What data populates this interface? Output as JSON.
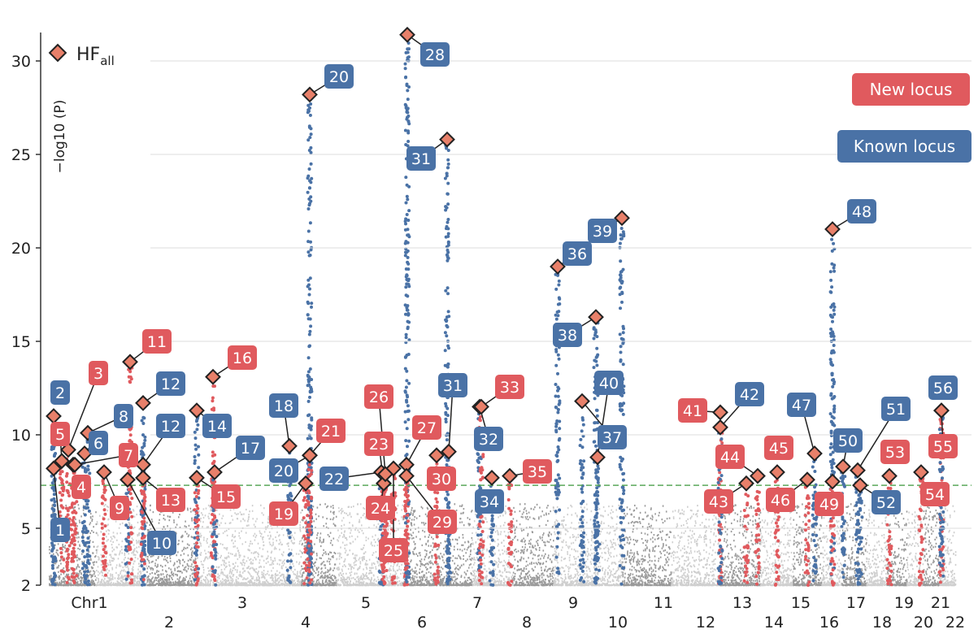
{
  "chart_data": {
    "type": "scatter",
    "title": "",
    "ylabel": "−log10 (P)",
    "ylim": [
      2,
      32
    ],
    "yticks": [
      2,
      5,
      10,
      15,
      20,
      25,
      30
    ],
    "significance_threshold": 7.3,
    "legend": {
      "marker": "diamond",
      "label": "HF",
      "label_sub": "all",
      "position": "top-left"
    },
    "chromosome_labels": [
      "Chr1",
      "2",
      "3",
      "4",
      "5",
      "6",
      "7",
      "8",
      "9",
      "10",
      "11",
      "12",
      "13",
      "14",
      "15",
      "16",
      "17",
      "18",
      "19",
      "20",
      "21",
      "22"
    ],
    "status_legend": [
      {
        "label": "New locus",
        "color": "#e05a5e"
      },
      {
        "label": "Known locus",
        "color": "#4a72a6"
      }
    ],
    "colors": {
      "new": "#e05a5e",
      "known": "#4a72a6",
      "bg_dark": "#9a9a9a",
      "bg_light": "#cfcfcf",
      "threshold": "#5aa85a",
      "diamond": "#e8806a"
    },
    "loci": [
      {
        "id": "1",
        "status": "known",
        "chr": 1,
        "y": 8.2
      },
      {
        "id": "2",
        "status": "known",
        "chr": 1,
        "y": 11.0
      },
      {
        "id": "3",
        "status": "new",
        "chr": 1,
        "y": 9.2
      },
      {
        "id": "4",
        "status": "new",
        "chr": 1,
        "y": 8.4
      },
      {
        "id": "5",
        "status": "new",
        "chr": 1,
        "y": 8.6
      },
      {
        "id": "6",
        "status": "known",
        "chr": 1,
        "y": 9.0
      },
      {
        "id": "7",
        "status": "new",
        "chr": 1,
        "y": 8.4
      },
      {
        "id": "8",
        "status": "known",
        "chr": 1,
        "y": 10.1
      },
      {
        "id": "9",
        "status": "new",
        "chr": 1,
        "y": 8.0
      },
      {
        "id": "10",
        "status": "known",
        "chr": 1,
        "y": 7.6
      },
      {
        "id": "11",
        "status": "new",
        "chr": 1,
        "y": 13.9
      },
      {
        "id": "12",
        "status": "known",
        "chr": 2,
        "y": 11.7
      },
      {
        "id": "12",
        "status": "known",
        "chr": 2,
        "y": 8.4
      },
      {
        "id": "13",
        "status": "new",
        "chr": 2,
        "y": 7.7
      },
      {
        "id": "14",
        "status": "known",
        "chr": 3,
        "y": 11.3
      },
      {
        "id": "15",
        "status": "new",
        "chr": 3,
        "y": 7.7
      },
      {
        "id": "16",
        "status": "new",
        "chr": 3,
        "y": 13.1
      },
      {
        "id": "17",
        "status": "known",
        "chr": 3,
        "y": 8.0
      },
      {
        "id": "18",
        "status": "known",
        "chr": 3,
        "y": 9.4
      },
      {
        "id": "19",
        "status": "new",
        "chr": 4,
        "y": 7.4
      },
      {
        "id": "20",
        "status": "known",
        "chr": 4,
        "y": 28.2
      },
      {
        "id": "20",
        "status": "known",
        "chr": 4,
        "y": 8.9
      },
      {
        "id": "21",
        "status": "new",
        "chr": 4,
        "y": 8.9
      },
      {
        "id": "22",
        "status": "known",
        "chr": 5,
        "y": 8.0
      },
      {
        "id": "23",
        "status": "new",
        "chr": 5,
        "y": 7.4
      },
      {
        "id": "24",
        "status": "new",
        "chr": 5,
        "y": 7.4
      },
      {
        "id": "25",
        "status": "new",
        "chr": 5,
        "y": 8.2
      },
      {
        "id": "26",
        "status": "new",
        "chr": 5,
        "y": 7.9
      },
      {
        "id": "27",
        "status": "new",
        "chr": 6,
        "y": 8.4
      },
      {
        "id": "28",
        "status": "known",
        "chr": 6,
        "y": 31.4
      },
      {
        "id": "29",
        "status": "new",
        "chr": 6,
        "y": 7.8
      },
      {
        "id": "30",
        "status": "new",
        "chr": 6,
        "y": 8.9
      },
      {
        "id": "31",
        "status": "known",
        "chr": 6,
        "y": 25.8
      },
      {
        "id": "31",
        "status": "known",
        "chr": 6,
        "y": 9.1
      },
      {
        "id": "32",
        "status": "known",
        "chr": 7,
        "y": 11.5
      },
      {
        "id": "33",
        "status": "new",
        "chr": 7,
        "y": 11.5
      },
      {
        "id": "34",
        "status": "known",
        "chr": 7,
        "y": 7.7
      },
      {
        "id": "35",
        "status": "new",
        "chr": 8,
        "y": 7.8
      },
      {
        "id": "36",
        "status": "known",
        "chr": 9,
        "y": 19.0
      },
      {
        "id": "37",
        "status": "known",
        "chr": 10,
        "y": 11.8
      },
      {
        "id": "38",
        "status": "known",
        "chr": 9,
        "y": 16.3
      },
      {
        "id": "39",
        "status": "known",
        "chr": 10,
        "y": 21.6
      },
      {
        "id": "40",
        "status": "known",
        "chr": 9,
        "y": 8.8
      },
      {
        "id": "41",
        "status": "new",
        "chr": 12,
        "y": 11.2
      },
      {
        "id": "42",
        "status": "known",
        "chr": 12,
        "y": 10.4
      },
      {
        "id": "43",
        "status": "new",
        "chr": 13,
        "y": 7.4
      },
      {
        "id": "44",
        "status": "new",
        "chr": 13,
        "y": 7.8
      },
      {
        "id": "45",
        "status": "new",
        "chr": 14,
        "y": 8.0
      },
      {
        "id": "46",
        "status": "new",
        "chr": 15,
        "y": 7.6
      },
      {
        "id": "47",
        "status": "known",
        "chr": 16,
        "y": 9.0
      },
      {
        "id": "48",
        "status": "known",
        "chr": 16,
        "y": 21.0
      },
      {
        "id": "49",
        "status": "new",
        "chr": 17,
        "y": 7.5
      },
      {
        "id": "50",
        "status": "known",
        "chr": 17,
        "y": 8.3
      },
      {
        "id": "51",
        "status": "known",
        "chr": 17,
        "y": 8.1
      },
      {
        "id": "52",
        "status": "known",
        "chr": 17,
        "y": 7.3
      },
      {
        "id": "53",
        "status": "new",
        "chr": 19,
        "y": 7.8
      },
      {
        "id": "54",
        "status": "new",
        "chr": 20,
        "y": 8.0
      },
      {
        "id": "55",
        "status": "new",
        "chr": 21,
        "y": 11.3
      },
      {
        "id": "56",
        "status": "known",
        "chr": 21,
        "y": 11.3
      }
    ]
  }
}
